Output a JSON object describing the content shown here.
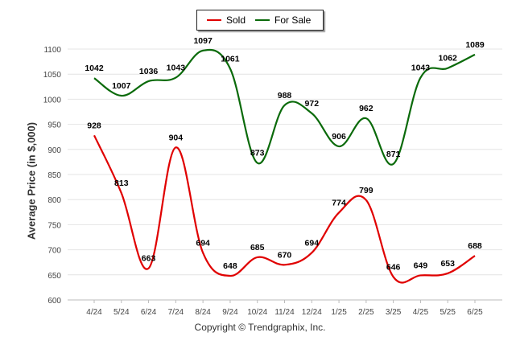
{
  "chart_data": {
    "type": "line",
    "categories": [
      "4/24",
      "5/24",
      "6/24",
      "7/24",
      "8/24",
      "9/24",
      "10/24",
      "11/24",
      "12/24",
      "1/25",
      "2/25",
      "3/25",
      "4/25",
      "5/25",
      "6/25"
    ],
    "series": [
      {
        "name": "Sold",
        "color": "#e00000",
        "values": [
          928,
          813,
          663,
          904,
          694,
          648,
          685,
          670,
          694,
          774,
          799,
          646,
          649,
          653,
          688
        ]
      },
      {
        "name": "For Sale",
        "color": "#0a6a0a",
        "values": [
          1042,
          1007,
          1036,
          1043,
          1097,
          1061,
          873,
          988,
          972,
          906,
          962,
          871,
          1043,
          1062,
          1089
        ]
      }
    ],
    "title": "",
    "xlabel": "",
    "ylabel": "Average Price (in $,000)",
    "ylim": [
      600,
      1100
    ],
    "yticks": [
      600,
      650,
      700,
      750,
      800,
      850,
      900,
      950,
      1000,
      1050,
      1100
    ],
    "grid": true,
    "legend_position": "top-center"
  },
  "footer": {
    "copyright": "Copyright © Trendgraphix, Inc."
  }
}
